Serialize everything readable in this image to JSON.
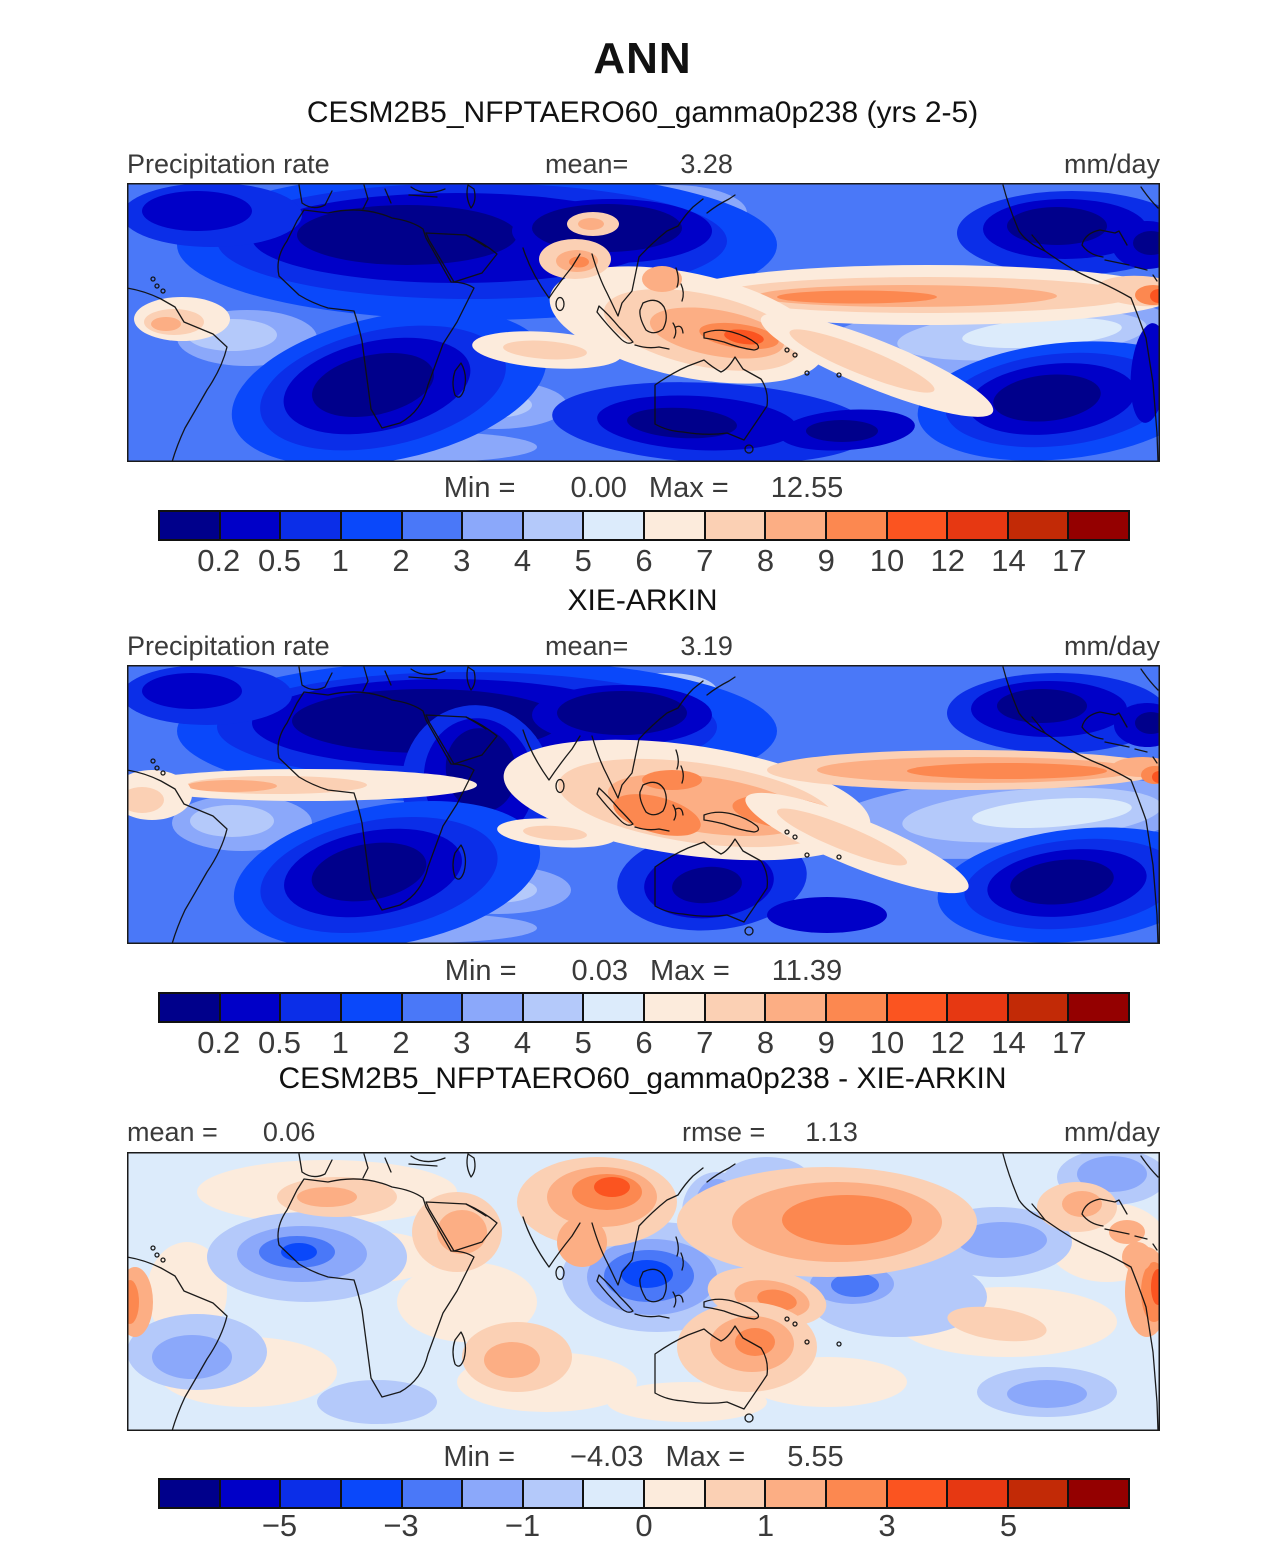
{
  "figure_title": "ANN",
  "palette": [
    "#00008B",
    "#0000C8",
    "#0B2EE8",
    "#0A48FA",
    "#4A78F8",
    "#8BA8FA",
    "#B4C9FA",
    "#DCEBFB",
    "#FCEBDC",
    "#FBD0B4",
    "#FCAE84",
    "#FC8850",
    "#FB5420",
    "#E63812",
    "#C22A06",
    "#940000"
  ],
  "panels": [
    {
      "title": "CESM2B5_NFPTAERO60_gamma0p238 (yrs 2-5)",
      "field_label": "Precipitation rate",
      "mean_label": "mean=",
      "mean_value": "3.28",
      "units": "mm/day",
      "min_label": "Min =",
      "min_value": "0.00",
      "max_label": "Max =",
      "max_value": "12.55",
      "colorbar": {
        "labels": [
          "0.2",
          "0.5",
          "1",
          "2",
          "3",
          "4",
          "5",
          "6",
          "7",
          "8",
          "9",
          "10",
          "12",
          "14",
          "17"
        ],
        "label_step": 1
      }
    },
    {
      "title": "XIE-ARKIN",
      "field_label": "Precipitation rate",
      "mean_label": "mean=",
      "mean_value": "3.19",
      "units": "mm/day",
      "min_label": "Min =",
      "min_value": "0.03",
      "max_label": "Max =",
      "max_value": "11.39",
      "colorbar": {
        "labels": [
          "0.2",
          "0.5",
          "1",
          "2",
          "3",
          "4",
          "5",
          "6",
          "7",
          "8",
          "9",
          "10",
          "12",
          "14",
          "17"
        ],
        "label_step": 1
      }
    },
    {
      "title": "CESM2B5_NFPTAERO60_gamma0p238 - XIE-ARKIN",
      "mean_label": "mean =",
      "mean_value": "0.06",
      "rmse_label": "rmse =",
      "rmse_value": "1.13",
      "units": "mm/day",
      "min_label": "Min =",
      "min_value": "−4.03",
      "max_label": "Max =",
      "max_value": "5.55",
      "colorbar": {
        "labels": [
          "−5",
          "−3",
          "−1",
          "0",
          "1",
          "3",
          "5"
        ],
        "label_step": 2
      }
    }
  ],
  "chart_data": [
    {
      "type": "heatmap",
      "subtype": "filled_contour_world_map",
      "season": "ANN",
      "title": "CESM2B5_NFPTAERO60_gamma0p238 (yrs 2-5)",
      "variable": "Precipitation rate",
      "units": "mm/day",
      "mean": 3.28,
      "min": 0.0,
      "max": 12.55,
      "contour_levels": [
        0.2,
        0.5,
        1,
        2,
        3,
        4,
        5,
        6,
        7,
        8,
        9,
        10,
        12,
        14,
        17
      ],
      "legend_position": "bottom",
      "notes": "Model annual-mean precipitation, ~45S-45N world map; dry (dark blue) subtropical highs over Sahara/Arabia, southern Africa, SE and NE Pacific; wet (orange) ITCZ band across Pacific, Maritime-Continent warm pool, Bay of Bengal, and northwest South America"
    },
    {
      "type": "heatmap",
      "subtype": "filled_contour_world_map",
      "season": "ANN",
      "title": "XIE-ARKIN",
      "variable": "Precipitation rate",
      "units": "mm/day",
      "mean": 3.19,
      "min": 0.03,
      "max": 11.39,
      "contour_levels": [
        0.2,
        0.5,
        1,
        2,
        3,
        4,
        5,
        6,
        7,
        8,
        9,
        10,
        12,
        14,
        17
      ],
      "legend_position": "bottom",
      "notes": "Observed (Xie-Arkin) annual-mean precipitation; smoother pattern, wet warm pool around Indonesia/New Guinea, Pacific ITCZ, dry East Africa/Arabian Sea and subtropical oceans"
    },
    {
      "type": "heatmap",
      "subtype": "difference_map",
      "season": "ANN",
      "title": "CESM2B5_NFPTAERO60_gamma0p238 - XIE-ARKIN",
      "variable": "Precipitation rate difference",
      "units": "mm/day",
      "mean": 0.06,
      "rmse": 1.13,
      "min": -4.03,
      "max": 5.55,
      "tick_labels": [
        -5,
        -3,
        -1,
        0,
        1,
        3,
        5
      ],
      "legend_position": "bottom",
      "notes": "Model-minus-obs bias: wet bias (red) over Himalaya/NW Pacific, New Guinea, Australia, NW South America; dry bias (blue) over equatorial Indian Ocean, tropical Atlantic, and west Pacific"
    }
  ]
}
